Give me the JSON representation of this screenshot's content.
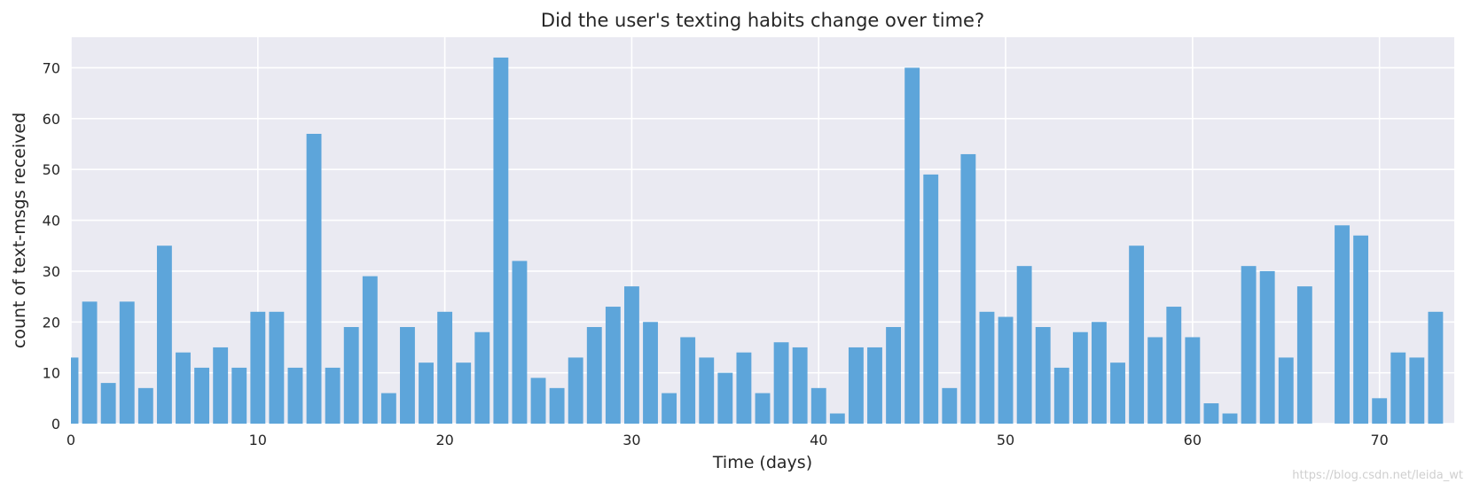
{
  "chart_data": {
    "type": "bar",
    "title": "Did the user's texting habits change over time?",
    "xlabel": "Time (days)",
    "ylabel": "count of text-msgs received",
    "xlim": [
      0,
      74
    ],
    "ylim": [
      0,
      76
    ],
    "xticks": [
      0,
      10,
      20,
      30,
      40,
      50,
      60,
      70
    ],
    "yticks": [
      0,
      10,
      20,
      30,
      40,
      50,
      60,
      70
    ],
    "grid": true,
    "bar_color": "#5DA5DA",
    "background_color": "#EAEAF2",
    "values": [
      13,
      24,
      8,
      24,
      7,
      35,
      14,
      11,
      15,
      11,
      22,
      22,
      11,
      57,
      11,
      19,
      29,
      6,
      19,
      12,
      22,
      12,
      18,
      72,
      32,
      9,
      7,
      13,
      19,
      23,
      27,
      20,
      6,
      17,
      13,
      10,
      14,
      6,
      16,
      15,
      7,
      2,
      15,
      15,
      19,
      70,
      49,
      7,
      53,
      22,
      21,
      31,
      19,
      11,
      18,
      20,
      12,
      35,
      17,
      23,
      17,
      4,
      2,
      31,
      30,
      13,
      27,
      0,
      39,
      37,
      5,
      14,
      13,
      22
    ]
  },
  "watermark": "https://blog.csdn.net/leida_wt"
}
